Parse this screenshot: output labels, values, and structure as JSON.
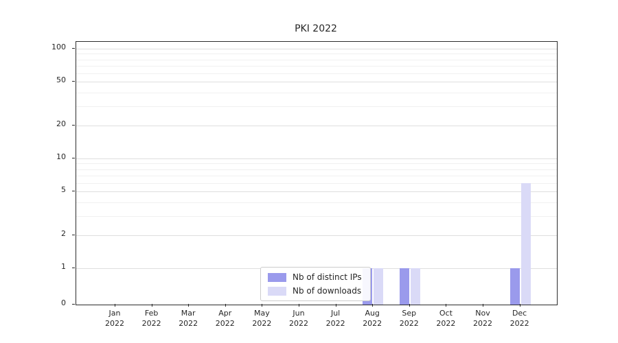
{
  "chart_data": {
    "type": "bar",
    "title": "PKI 2022",
    "categories": [
      "Jan 2022",
      "Feb 2022",
      "Mar 2022",
      "Apr 2022",
      "May 2022",
      "Jun 2022",
      "Jul 2022",
      "Aug 2022",
      "Sep 2022",
      "Oct 2022",
      "Nov 2022",
      "Dec 2022"
    ],
    "series": [
      {
        "name": "Nb of distinct IPs",
        "color": "#9a9aec",
        "values": [
          0,
          0,
          0,
          0,
          0,
          0,
          0,
          1,
          1,
          0,
          0,
          1
        ]
      },
      {
        "name": "Nb of downloads",
        "color": "#dadaf7",
        "values": [
          0,
          0,
          0,
          0,
          0,
          0,
          0,
          1,
          1,
          0,
          0,
          6
        ]
      }
    ],
    "yticks": [
      0,
      1,
      2,
      5,
      10,
      20,
      50,
      100
    ],
    "y_minor_gridlines": [
      3,
      4,
      6,
      7,
      8,
      9,
      30,
      40,
      60,
      70,
      80,
      90
    ],
    "yscale": "symlog",
    "ylim": [
      0,
      115
    ],
    "grid": "horizontal",
    "legend_position": "lower-center"
  }
}
